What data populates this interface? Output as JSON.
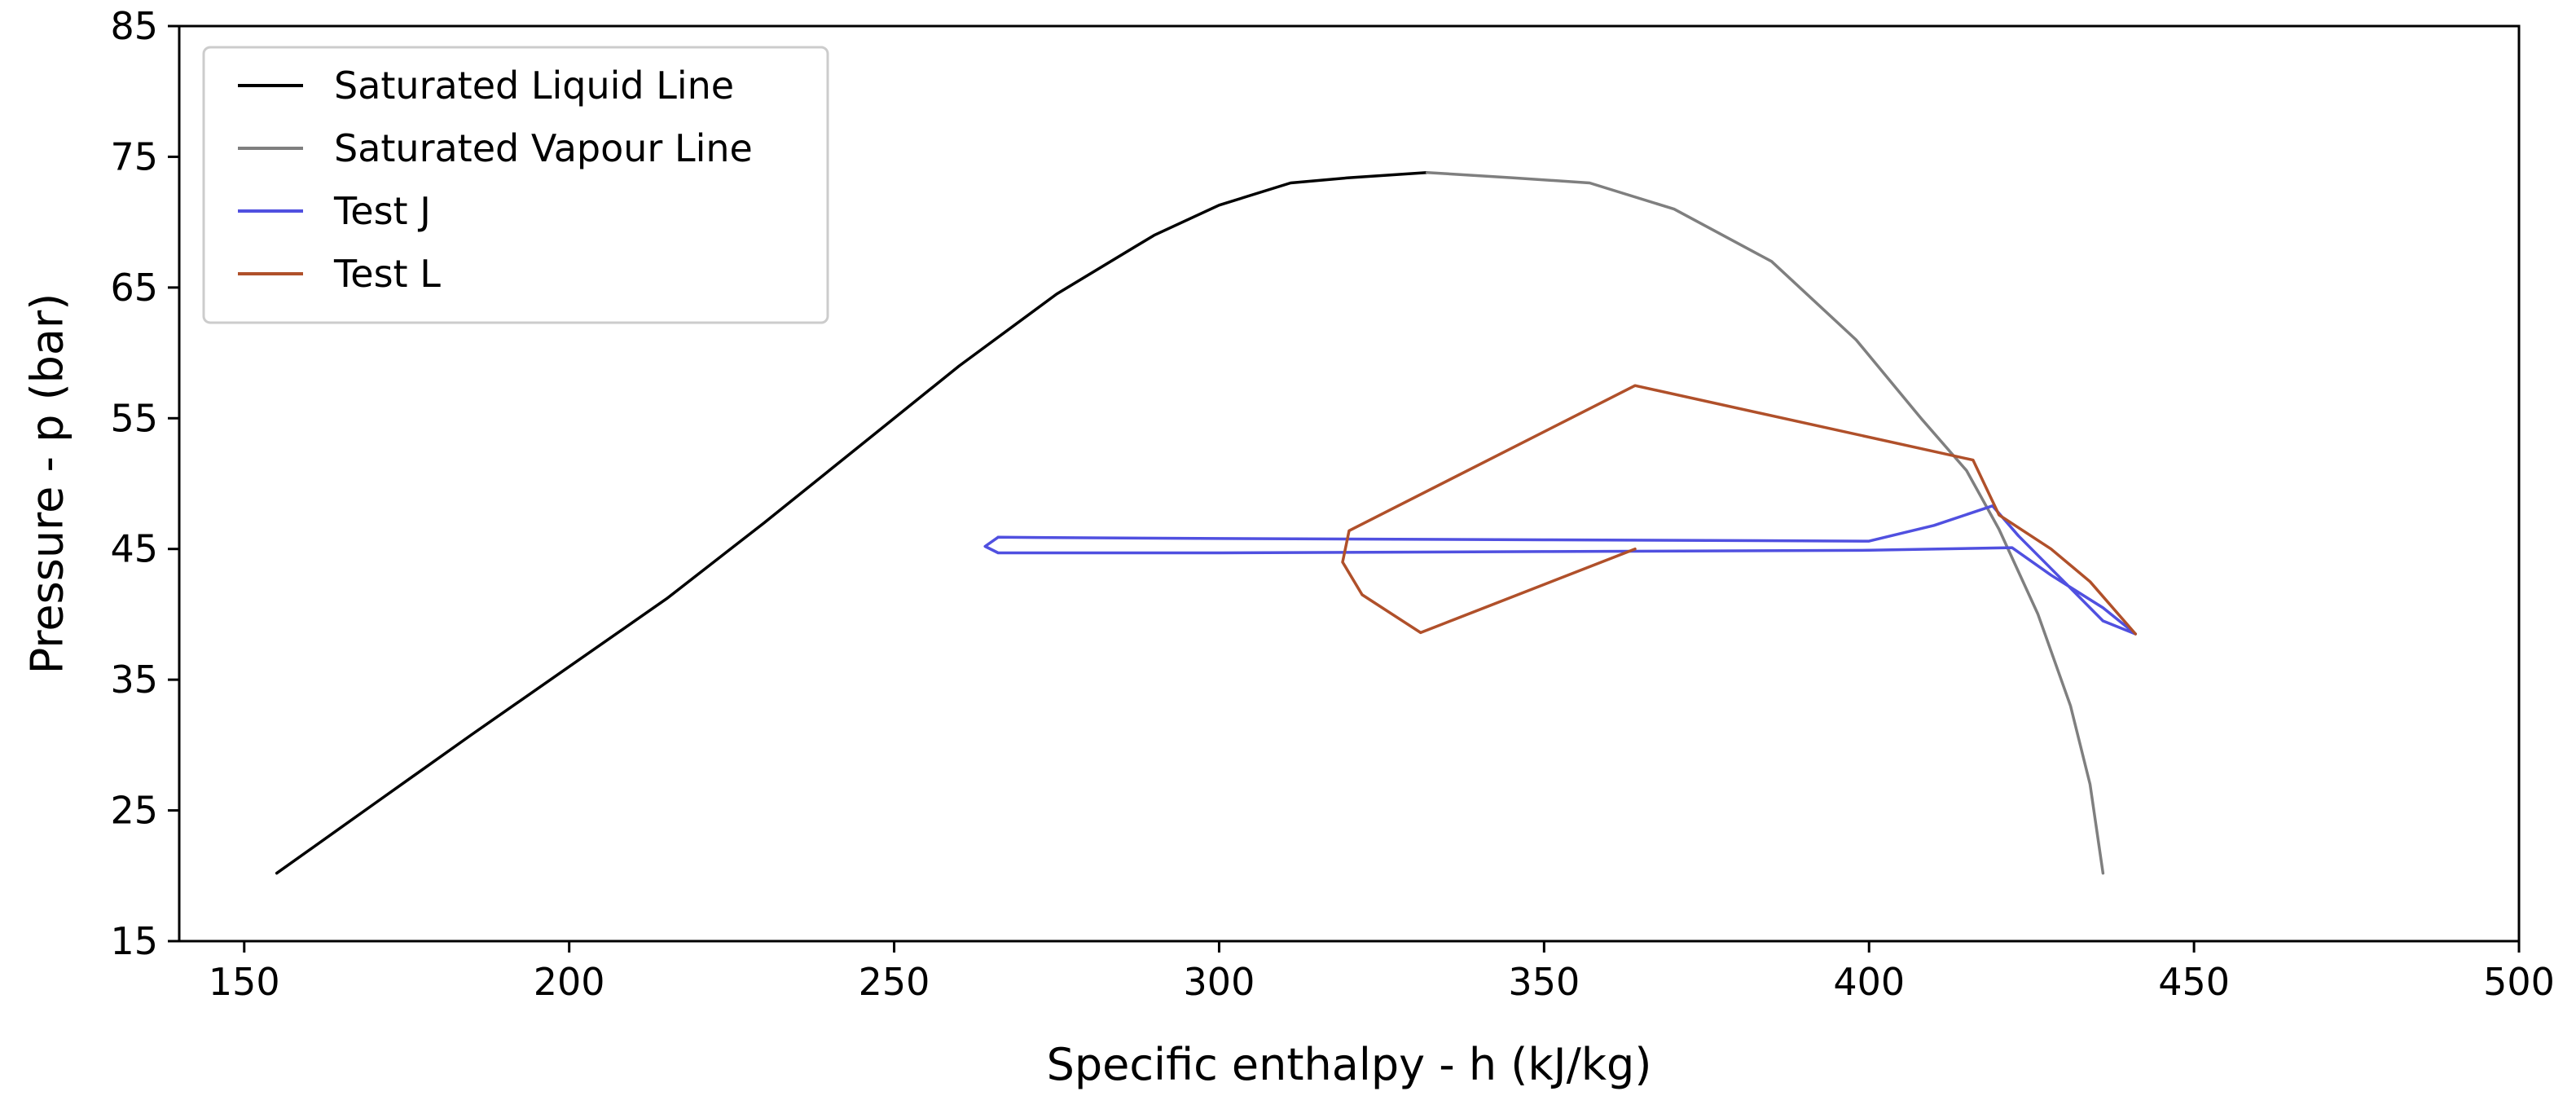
{
  "chart_data": {
    "type": "line",
    "title": "",
    "xlabel": "Specific enthalpy - h (kJ/kg)",
    "ylabel": "Pressure - p (bar)",
    "xlim": [
      140,
      500
    ],
    "ylim": [
      15,
      85
    ],
    "xticks": [
      150,
      200,
      250,
      300,
      350,
      400,
      450,
      500
    ],
    "yticks": [
      15,
      25,
      35,
      45,
      55,
      65,
      75,
      85
    ],
    "grid": false,
    "legend_position": "upper-left",
    "series": [
      {
        "name": "Saturated Liquid Line",
        "color": "#000000",
        "points": [
          [
            155,
            20.2
          ],
          [
            170,
            25.5
          ],
          [
            185,
            30.8
          ],
          [
            200,
            36
          ],
          [
            215,
            41.2
          ],
          [
            230,
            47
          ],
          [
            245,
            53
          ],
          [
            260,
            59
          ],
          [
            275,
            64.5
          ],
          [
            290,
            69
          ],
          [
            300,
            71.3
          ],
          [
            311,
            73
          ],
          [
            320,
            73.4
          ],
          [
            332,
            73.8
          ]
        ]
      },
      {
        "name": "Saturated Vapour Line",
        "color": "#7f7f7f",
        "points": [
          [
            332,
            73.8
          ],
          [
            345,
            73.4
          ],
          [
            357,
            73
          ],
          [
            370,
            71
          ],
          [
            385,
            67
          ],
          [
            398,
            61
          ],
          [
            408,
            55
          ],
          [
            415,
            51
          ],
          [
            420,
            46.5
          ],
          [
            426,
            40
          ],
          [
            431,
            33
          ],
          [
            434,
            27
          ],
          [
            436,
            20.2
          ]
        ]
      },
      {
        "name": "Test J",
        "color": "#5050e0",
        "points": [
          [
            266,
            45.9
          ],
          [
            300,
            45.8
          ],
          [
            350,
            45.7
          ],
          [
            400,
            45.6
          ],
          [
            410,
            46.8
          ],
          [
            419,
            48.3
          ],
          [
            423,
            46
          ],
          [
            430,
            42.5
          ],
          [
            436,
            39.5
          ],
          [
            441,
            38.5
          ],
          [
            436,
            40.5
          ],
          [
            428,
            43
          ],
          [
            422,
            45.1
          ],
          [
            400,
            44.9
          ],
          [
            350,
            44.8
          ],
          [
            300,
            44.7
          ],
          [
            266,
            44.7
          ],
          [
            264,
            45.2
          ],
          [
            266,
            45.9
          ]
        ]
      },
      {
        "name": "Test L",
        "color": "#b0502a",
        "points": [
          [
            364,
            45
          ],
          [
            331,
            38.6
          ],
          [
            322,
            41.5
          ],
          [
            319,
            44
          ],
          [
            320,
            46.4
          ],
          [
            364,
            57.5
          ],
          [
            416,
            51.8
          ],
          [
            420,
            47.6
          ],
          [
            428,
            45
          ],
          [
            434,
            42.5
          ],
          [
            441,
            38.5
          ]
        ]
      }
    ]
  }
}
